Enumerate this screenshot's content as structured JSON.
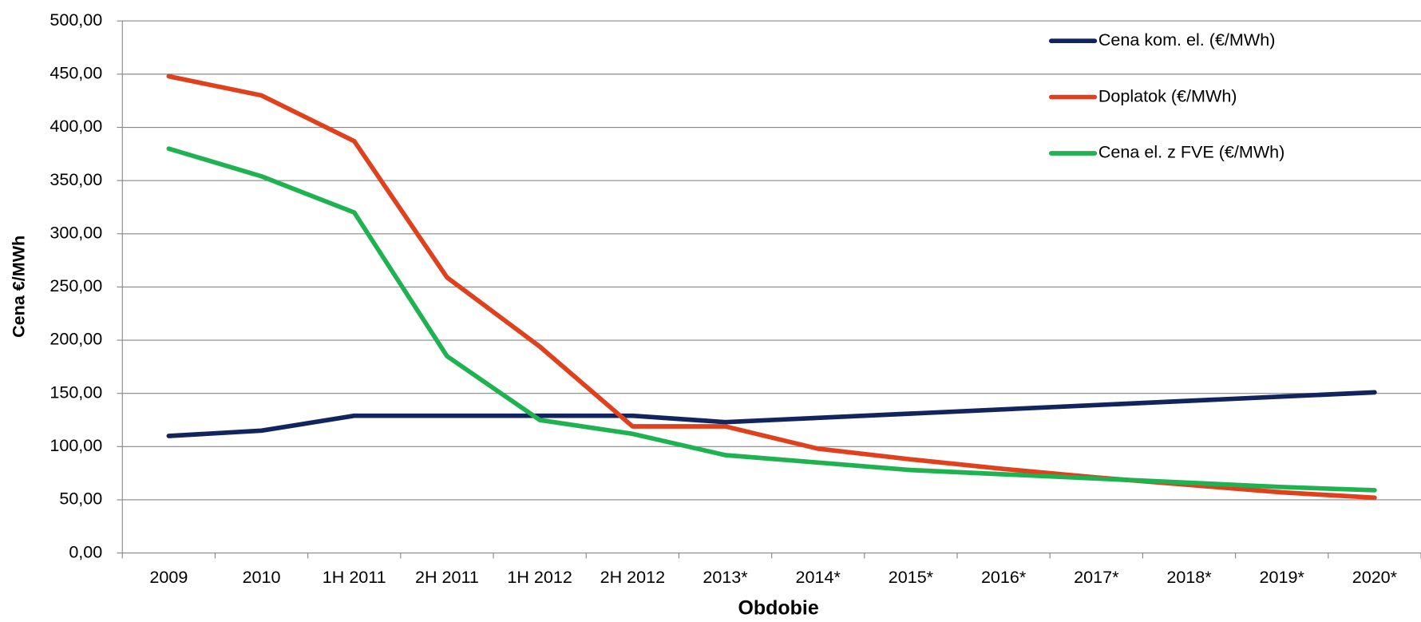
{
  "chart_data": {
    "type": "line",
    "x_label": "Obdobie",
    "y_label": "Cena €/MWh",
    "categories": [
      "2009",
      "2010",
      "1H 2011",
      "2H 2011",
      "1H 2012",
      "2H 2012",
      "2013*",
      "2014*",
      "2015*",
      "2016*",
      "2017*",
      "2018*",
      "2019*",
      "2020*"
    ],
    "series": [
      {
        "name": "Cena kom. el. (€/MWh)",
        "color": "#12245e",
        "values": [
          110,
          115,
          129,
          129,
          129,
          129,
          123,
          127,
          131,
          135,
          139,
          143,
          147,
          151
        ]
      },
      {
        "name": "Doplatok (€/MWh)",
        "color": "#e0401c",
        "values": [
          448,
          430,
          387,
          259,
          194,
          119,
          119,
          98,
          88,
          79,
          71,
          64,
          57,
          52
        ]
      },
      {
        "name": "Cena el. z FVE (€/MWh)",
        "color": "#1fb250",
        "values": [
          380,
          354,
          320,
          185,
          125,
          112,
          92,
          85,
          78,
          74,
          70,
          66,
          62,
          59
        ]
      }
    ],
    "ylim": [
      0,
      500
    ],
    "yticks": [
      {
        "value": 0,
        "label": "0,00"
      },
      {
        "value": 50,
        "label": "50,00"
      },
      {
        "value": 100,
        "label": "100,00"
      },
      {
        "value": 150,
        "label": "150,00"
      },
      {
        "value": 200,
        "label": "200,00"
      },
      {
        "value": 250,
        "label": "250,00"
      },
      {
        "value": 300,
        "label": "300,00"
      },
      {
        "value": 350,
        "label": "350,00"
      },
      {
        "value": 400,
        "label": "400,00"
      },
      {
        "value": 450,
        "label": "450,00"
      },
      {
        "value": 500,
        "label": "500,00"
      }
    ],
    "grid": true,
    "legend": "upper right"
  }
}
